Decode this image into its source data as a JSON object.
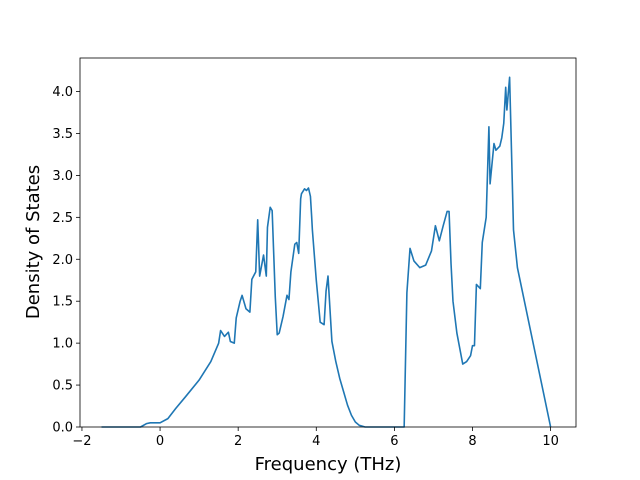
{
  "chart_data": {
    "type": "line",
    "title": "",
    "xlabel": "Frequency (THz)",
    "ylabel": "Density of States",
    "xlim": [
      -2.05,
      10.65
    ],
    "ylim": [
      0.0,
      4.4
    ],
    "grid": false,
    "x_ticks": [
      -2,
      0,
      2,
      4,
      6,
      8,
      10
    ],
    "x_tick_labels": [
      "−2",
      "0",
      "2",
      "4",
      "6",
      "8",
      "10"
    ],
    "y_ticks": [
      0.0,
      0.5,
      1.0,
      1.5,
      2.0,
      2.5,
      3.0,
      3.5,
      4.0
    ],
    "y_tick_labels": [
      "0.0",
      "0.5",
      "1.0",
      "1.5",
      "2.0",
      "2.5",
      "3.0",
      "3.5",
      "4.0"
    ],
    "line_color": "#1f77b4",
    "series": [
      {
        "name": "",
        "x": [
          -1.5,
          -0.5,
          -0.35,
          -0.25,
          0.0,
          0.2,
          0.4,
          0.65,
          1.0,
          1.3,
          1.5,
          1.55,
          1.65,
          1.75,
          1.8,
          1.9,
          1.95,
          2.05,
          2.1,
          2.2,
          2.3,
          2.35,
          2.45,
          2.5,
          2.55,
          2.65,
          2.72,
          2.75,
          2.82,
          2.87,
          2.95,
          3.0,
          3.05,
          3.15,
          3.25,
          3.3,
          3.35,
          3.45,
          3.5,
          3.55,
          3.6,
          3.62,
          3.7,
          3.75,
          3.8,
          3.85,
          3.88,
          3.9,
          4.0,
          4.05,
          4.1,
          4.2,
          4.25,
          4.3,
          4.4,
          4.5,
          4.6,
          4.7,
          4.8,
          4.9,
          5.0,
          5.1,
          5.25,
          6.25,
          6.32,
          6.4,
          6.5,
          6.65,
          6.8,
          6.95,
          7.05,
          7.15,
          7.25,
          7.35,
          7.4,
          7.45,
          7.5,
          7.6,
          7.75,
          7.85,
          7.95,
          8.0,
          8.05,
          8.1,
          8.2,
          8.25,
          8.35,
          8.42,
          8.45,
          8.55,
          8.6,
          8.7,
          8.75,
          8.8,
          8.85,
          8.88,
          8.95,
          9.05,
          9.15,
          10.0
        ],
        "y": [
          0.0,
          0.0,
          0.04,
          0.05,
          0.05,
          0.1,
          0.22,
          0.36,
          0.56,
          0.78,
          1.0,
          1.15,
          1.08,
          1.13,
          1.02,
          1.0,
          1.3,
          1.5,
          1.57,
          1.41,
          1.37,
          1.76,
          1.85,
          2.47,
          1.8,
          2.05,
          1.8,
          2.38,
          2.62,
          2.58,
          1.55,
          1.1,
          1.12,
          1.32,
          1.57,
          1.52,
          1.85,
          2.18,
          2.2,
          2.07,
          2.72,
          2.78,
          2.84,
          2.82,
          2.85,
          2.75,
          2.52,
          2.35,
          1.75,
          1.5,
          1.25,
          1.22,
          1.62,
          1.8,
          1.02,
          0.78,
          0.58,
          0.42,
          0.26,
          0.14,
          0.06,
          0.02,
          0.0,
          0.0,
          1.6,
          2.13,
          1.98,
          1.9,
          1.93,
          2.1,
          2.4,
          2.22,
          2.4,
          2.57,
          2.57,
          1.95,
          1.5,
          1.12,
          0.75,
          0.78,
          0.85,
          0.97,
          0.97,
          1.7,
          1.65,
          2.2,
          2.5,
          3.58,
          2.9,
          3.38,
          3.3,
          3.35,
          3.45,
          3.62,
          4.05,
          3.78,
          4.17,
          2.35,
          1.9,
          0.0
        ]
      }
    ]
  }
}
